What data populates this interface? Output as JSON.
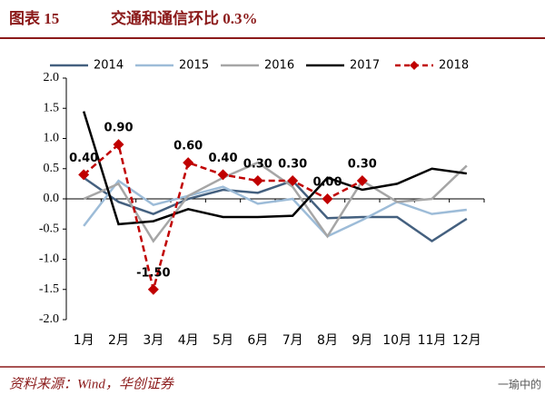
{
  "header": {
    "figure": "图表 15",
    "title": "交通和通信环比 0.3%"
  },
  "chart_data": {
    "type": "line",
    "categories": [
      "1月",
      "2月",
      "3月",
      "4月",
      "5月",
      "6月",
      "7月",
      "8月",
      "9月",
      "10月",
      "11月",
      "12月"
    ],
    "series": [
      {
        "name": "2014",
        "color": "#44607f",
        "values": [
          0.35,
          -0.05,
          -0.25,
          0.0,
          0.15,
          0.1,
          0.3,
          -0.32,
          -0.3,
          -0.3,
          -0.7,
          -0.33
        ]
      },
      {
        "name": "2015",
        "color": "#9dbcd8",
        "values": [
          -0.45,
          0.3,
          -0.1,
          0.05,
          0.2,
          -0.08,
          0.0,
          -0.62,
          -0.35,
          -0.05,
          -0.25,
          -0.18
        ]
      },
      {
        "name": "2016",
        "color": "#a6a6a6",
        "values": [
          0.0,
          0.25,
          -0.7,
          0.05,
          0.35,
          0.6,
          0.2,
          -0.62,
          0.3,
          -0.05,
          0.0,
          0.55
        ]
      },
      {
        "name": "2017",
        "color": "#000000",
        "values": [
          1.45,
          -0.42,
          -0.37,
          -0.17,
          -0.3,
          -0.3,
          -0.28,
          0.35,
          0.15,
          0.25,
          0.5,
          0.42
        ]
      },
      {
        "name": "2018",
        "color": "#c00000",
        "dashed": true,
        "marker": "diamond",
        "values": [
          0.4,
          0.9,
          -1.5,
          0.6,
          0.4,
          0.3,
          0.3,
          0.0,
          0.3,
          null,
          null,
          null
        ],
        "value_labels": [
          "0.40",
          "0.90",
          "-1.50",
          "0.60",
          "0.40",
          "0.30",
          "0.30",
          "0.00",
          "0.30",
          null,
          null,
          null
        ]
      }
    ],
    "ylim": [
      -2,
      2
    ],
    "yticks": [
      {
        "value": -2,
        "label": "-2.0"
      },
      -1.5,
      {
        "value": -1,
        "label": "-1.0"
      },
      -0.5,
      {
        "value": 0,
        "label": "0.0"
      },
      0.5,
      {
        "value": 1,
        "label": "1.0"
      },
      1.5,
      {
        "value": 2,
        "label": "2.0"
      }
    ],
    "legend": "top"
  },
  "footer": {
    "source": "资料来源：Wind，华创证券",
    "watermark": "一瑜中的"
  }
}
